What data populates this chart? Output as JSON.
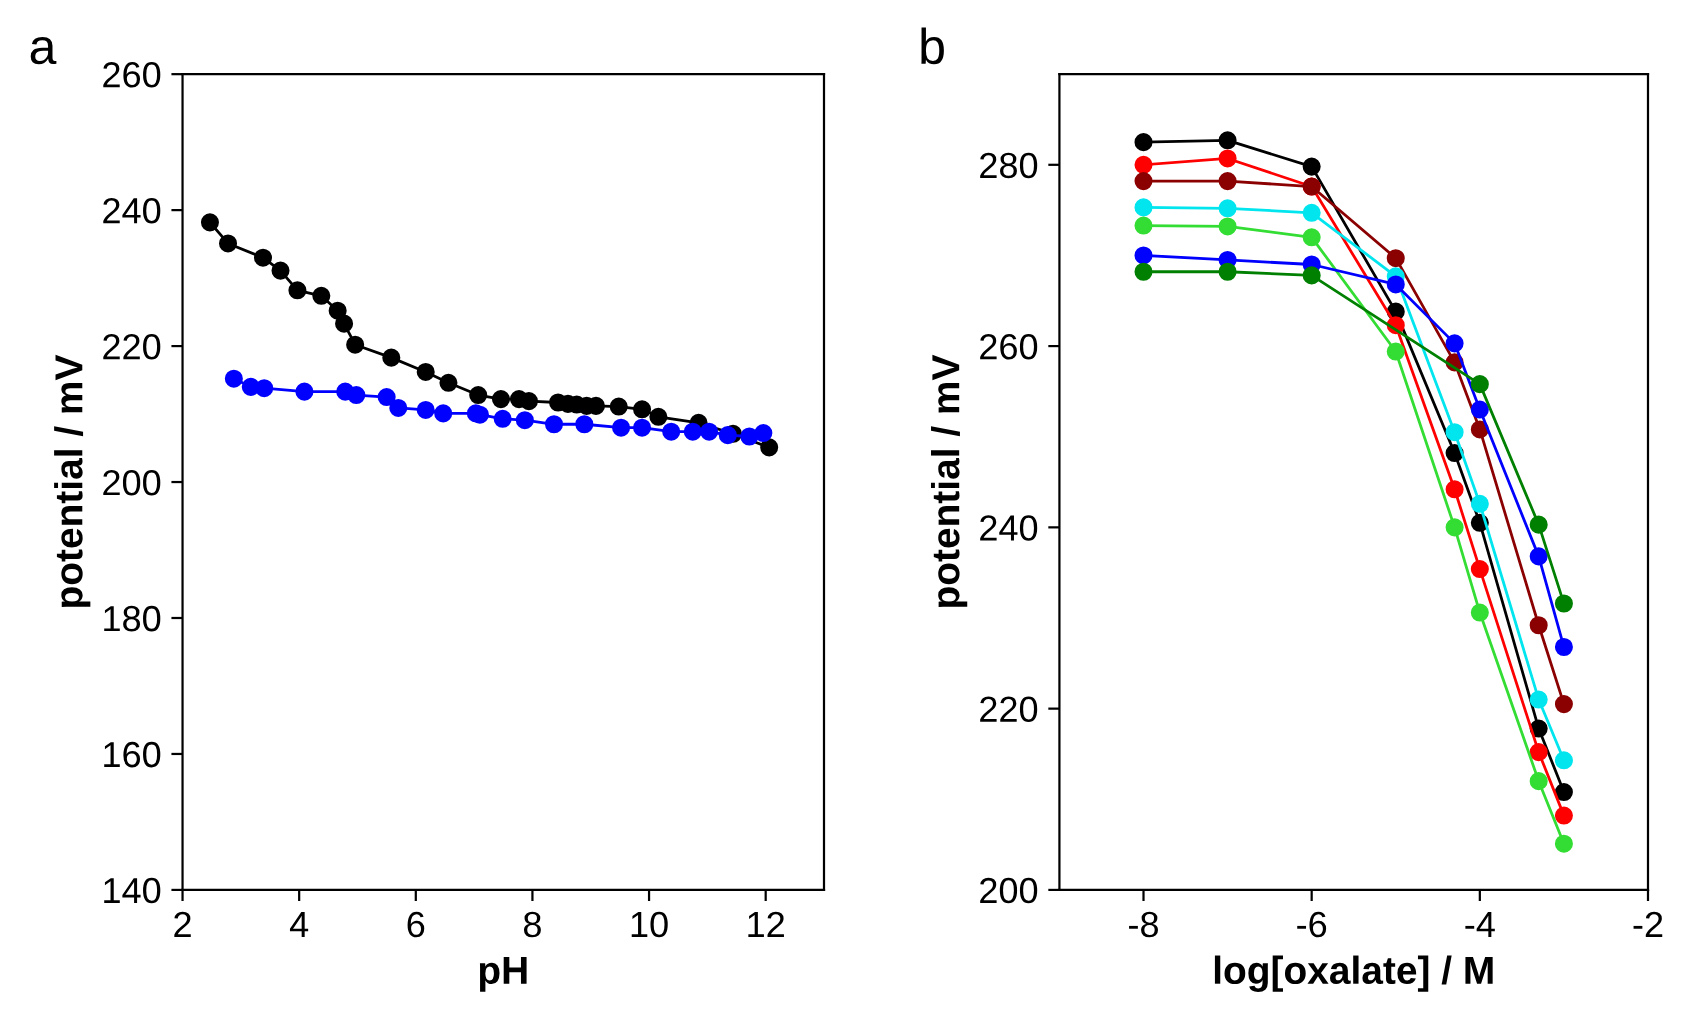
{
  "chart_data": [
    {
      "type": "line",
      "title": "a",
      "xlabel": "pH",
      "ylabel": "potential / mV",
      "xlim": [
        2,
        13
      ],
      "xticks": [
        2,
        4,
        6,
        8,
        10,
        12
      ],
      "ylim": [
        140,
        260
      ],
      "yticks": [
        140,
        160,
        180,
        200,
        220,
        240,
        260
      ],
      "marker": "circle",
      "grid": false,
      "legend": false,
      "series": [
        {
          "color": "#000000",
          "x": [
            2.47,
            2.78,
            3.38,
            3.68,
            3.97,
            4.38,
            4.66,
            4.77,
            4.96,
            5.58,
            6.17,
            6.56,
            7.07,
            7.46,
            7.77,
            7.94,
            8.44,
            8.61,
            8.76,
            8.93,
            9.09,
            9.48,
            9.88,
            10.16,
            10.85,
            11.44,
            12.06
          ],
          "values": [
            238.2,
            235.1,
            233.0,
            231.1,
            228.2,
            227.4,
            225.2,
            223.3,
            220.2,
            218.3,
            216.2,
            214.6,
            212.8,
            212.2,
            212.2,
            211.9,
            211.7,
            211.5,
            211.4,
            211.2,
            211.2,
            211.1,
            210.7,
            209.6,
            208.7,
            207.1,
            205.1
          ]
        },
        {
          "color": "#0000ff",
          "x": [
            2.88,
            3.17,
            3.4,
            4.09,
            4.79,
            4.98,
            5.5,
            5.7,
            6.17,
            6.47,
            7.03,
            7.1,
            7.49,
            7.87,
            8.37,
            8.89,
            9.52,
            9.88,
            10.38,
            10.75,
            11.03,
            11.35,
            11.72,
            11.96
          ],
          "values": [
            215.2,
            214.0,
            213.8,
            213.3,
            213.3,
            212.8,
            212.5,
            210.9,
            210.6,
            210.1,
            210.1,
            209.9,
            209.3,
            209.1,
            208.5,
            208.5,
            208.0,
            208.0,
            207.4,
            207.4,
            207.4,
            206.9,
            206.7,
            207.2
          ]
        }
      ]
    },
    {
      "type": "line",
      "title": "b",
      "xlabel": "log[oxalate] / M",
      "ylabel": "potential / mV",
      "xlim": [
        -9,
        -2
      ],
      "xticks": [
        -8,
        -6,
        -4,
        -2
      ],
      "ylim": [
        200,
        290
      ],
      "yticks": [
        200,
        220,
        240,
        260,
        280
      ],
      "marker": "circle",
      "grid": false,
      "legend": false,
      "x": [
        -8,
        -7,
        -6,
        -5,
        -4.3,
        -4,
        -3.3,
        -3
      ],
      "series": [
        {
          "color": "#000000",
          "values": [
            282.5,
            282.7,
            279.8,
            263.8,
            248.2,
            240.5,
            217.8,
            210.8
          ]
        },
        {
          "color": "#ff0000",
          "values": [
            280.0,
            280.7,
            277.6,
            262.3,
            244.2,
            235.4,
            215.2,
            208.2
          ]
        },
        {
          "color": "#8b0000",
          "values": [
            278.2,
            278.2,
            277.6,
            269.7,
            258.2,
            250.8,
            229.2,
            220.5
          ]
        },
        {
          "color": "#00e5ee",
          "values": [
            275.3,
            275.2,
            274.7,
            267.7,
            250.5,
            242.6,
            221.0,
            214.3
          ]
        },
        {
          "color": "#33dd33",
          "values": [
            273.3,
            273.2,
            272.0,
            259.4,
            240.0,
            230.6,
            212.0,
            205.1
          ]
        },
        {
          "color": "#0000ff",
          "values": [
            270.0,
            269.5,
            269.0,
            266.8,
            260.3,
            253.0,
            236.8,
            226.8
          ]
        },
        {
          "color": "#008000",
          "values": [
            268.2,
            268.2,
            267.8,
            null,
            null,
            255.8,
            240.3,
            231.6
          ]
        }
      ]
    }
  ]
}
